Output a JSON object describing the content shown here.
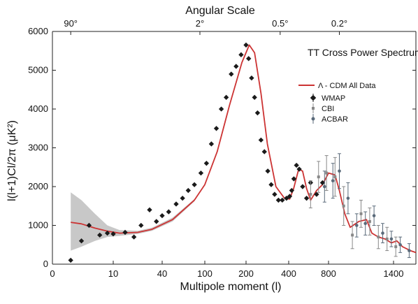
{
  "chart_data": {
    "type": "scatter",
    "title": "TT Cross Power Spectrum",
    "xlabel": "Multipole moment (l)",
    "ylabel": "l(l+1)Cl/2π (μK²)",
    "top_axis_label": "Angular Scale",
    "x_scale": "piecewise (logarithmic below 100, linear above)",
    "ylim": [
      0,
      6000
    ],
    "y_ticks": [
      "0",
      "1000",
      "2000",
      "3000",
      "4000",
      "5000",
      "6000"
    ],
    "x_ticks": [
      "0",
      "10",
      "40",
      "100",
      "200",
      "400",
      "800",
      "1400"
    ],
    "top_ticks": [
      "90°",
      "2°",
      "0.5°",
      "0.2°"
    ],
    "legend": {
      "placement": "top-right",
      "model_label": "Λ - CDM All Data",
      "entries": [
        "WMAP",
        "CBI",
        "ACBAR"
      ]
    },
    "colors": {
      "model_line": "#cc3333",
      "uncertainty_band": "#c8c8c8",
      "wmap": "#1a1a1a",
      "cbi": "#888888",
      "acbar": "#5a6a7a"
    },
    "model": {
      "name": "Λ - CDM All Data",
      "l": [
        2,
        3,
        5,
        8,
        12,
        20,
        30,
        50,
        80,
        100,
        130,
        160,
        190,
        215,
        240,
        270,
        300,
        340,
        380,
        410,
        450,
        500,
        540,
        580,
        620,
        680,
        740,
        800,
        860,
        900,
        950,
        1000,
        1080,
        1150,
        1200,
        1260,
        1320,
        1380,
        1430,
        1480,
        1550,
        1600
      ],
      "D_l": [
        1080,
        1040,
        930,
        850,
        800,
        820,
        900,
        1150,
        1650,
        2050,
        2900,
        4100,
        5200,
        5650,
        5450,
        4400,
        3100,
        2000,
        1700,
        1680,
        1950,
        2450,
        2400,
        1950,
        1650,
        1900,
        2050,
        2350,
        2300,
        1900,
        1300,
        950,
        1100,
        1150,
        800,
        700,
        650,
        550,
        600,
        450,
        350,
        300
      ],
      "band_l": [
        2,
        3,
        5,
        8,
        12,
        20,
        30,
        50,
        80
      ],
      "band_lo": [
        350,
        450,
        600,
        700,
        730,
        780,
        860,
        1100,
        1620
      ],
      "band_hi": [
        1850,
        1650,
        1300,
        1000,
        880,
        860,
        940,
        1200,
        1680
      ]
    },
    "series": [
      {
        "name": "WMAP",
        "l": [
          2,
          3,
          4,
          6,
          8,
          10,
          14,
          18,
          22,
          28,
          34,
          40,
          46,
          54,
          62,
          70,
          80,
          92,
          104,
          116,
          128,
          140,
          152,
          164,
          176,
          188,
          200,
          212,
          226,
          240,
          254,
          270,
          286,
          302,
          318,
          334,
          352,
          370,
          390,
          410,
          430,
          452,
          478,
          506,
          540,
          580,
          620,
          680,
          740
        ],
        "D_l": [
          100,
          600,
          1000,
          750,
          800,
          780,
          820,
          700,
          1000,
          1400,
          1100,
          1250,
          1350,
          1550,
          1700,
          1900,
          2050,
          2350,
          2600,
          3100,
          3500,
          4000,
          4300,
          4900,
          5100,
          5400,
          5650,
          5300,
          4800,
          4300,
          3900,
          3200,
          2900,
          2400,
          2050,
          1800,
          1650,
          1650,
          1700,
          1750,
          1900,
          2200,
          2550,
          2450,
          2000,
          1700,
          2100,
          1800,
          2100
        ]
      },
      {
        "name": "CBI",
        "l": [
          620,
          700,
          780,
          860,
          940,
          1020,
          1100,
          1180,
          1260,
          1340,
          1420
        ],
        "D_l": [
          1800,
          2250,
          2350,
          2250,
          1500,
          750,
          1300,
          1100,
          700,
          650,
          450
        ],
        "err": [
          350,
          400,
          450,
          500,
          500,
          350,
          350,
          350,
          300,
          300,
          250
        ]
      },
      {
        "name": "ACBAR",
        "l": [
          760,
          840,
          900,
          980,
          1060,
          1140,
          1220,
          1300,
          1380,
          1460,
          1540
        ],
        "D_l": [
          2000,
          2150,
          2400,
          1700,
          1000,
          1050,
          1250,
          800,
          650,
          500,
          350
        ],
        "err": [
          400,
          450,
          450,
          400,
          300,
          300,
          250,
          250,
          200,
          200,
          180
        ]
      }
    ]
  }
}
